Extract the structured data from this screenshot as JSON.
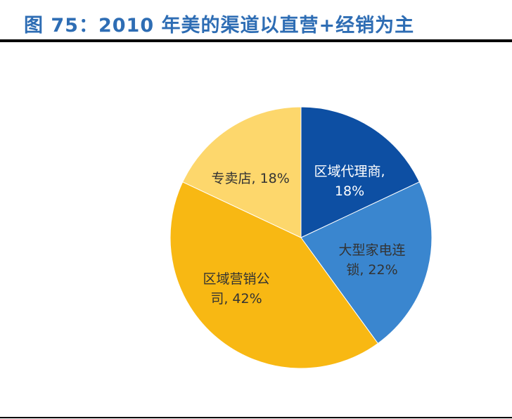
{
  "title": "图 75：2010 年美的渠道以直营+经销为主",
  "chart_data": {
    "type": "pie",
    "title": "图 75：2010 年美的渠道以直营+经销为主",
    "start_angle": "12 o'clock, clockwise",
    "slices": [
      {
        "label": "区域代理商",
        "value": 18,
        "color": "#0D4FA3",
        "text_color": "#FFFFFF",
        "display": [
          "区域代理商,",
          "18%"
        ]
      },
      {
        "label": "大型家电连锁",
        "value": 22,
        "color": "#3A86CF",
        "text_color": "#333333",
        "display": [
          "大型家电连",
          "锁, 22%"
        ]
      },
      {
        "label": "区域营销公司",
        "value": 42,
        "color": "#F8B813",
        "text_color": "#333333",
        "display": [
          "区域营销公",
          "司, 42%"
        ]
      },
      {
        "label": "专卖店",
        "value": 18,
        "color": "#FDD76C",
        "text_color": "#333333",
        "display": [
          "专卖店, 18%"
        ]
      }
    ],
    "unit": "%"
  }
}
